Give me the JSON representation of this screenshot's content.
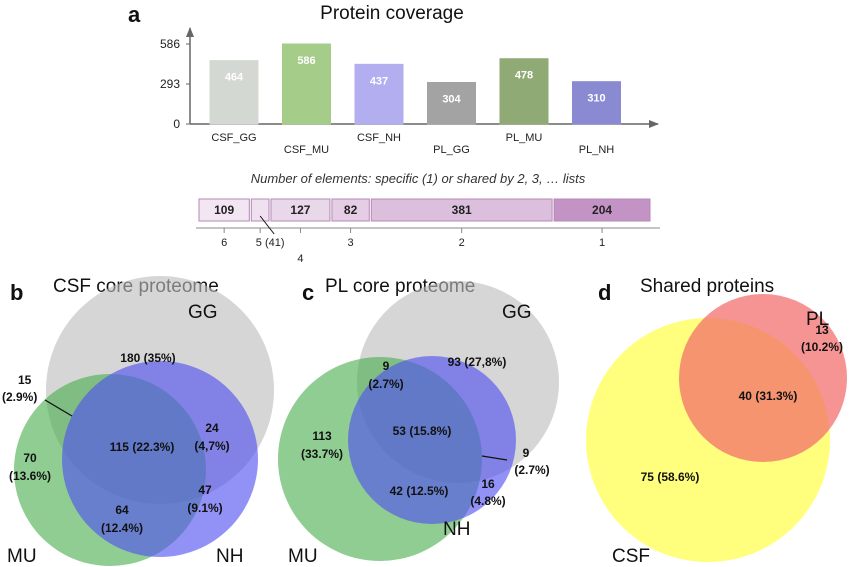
{
  "chart_data": [
    {
      "type": "bar",
      "panel": "a",
      "title": "Protein coverage",
      "categories": [
        "CSF_GG",
        "CSF_MU",
        "CSF_NH",
        "PL_GG",
        "PL_MU",
        "PL_NH"
      ],
      "values": [
        464,
        586,
        437,
        304,
        478,
        310
      ],
      "colors": [
        "#d4d8d2",
        "#a6cc8a",
        "#b3aef0",
        "#a3a3a3",
        "#8faa74",
        "#8a8ad2"
      ],
      "yticks": [
        0,
        293,
        586
      ],
      "ylim": [
        0,
        586
      ]
    },
    {
      "type": "bar",
      "subtype": "stacked-horizontal",
      "title": "Number of elements: specific (1) or shared by 2, 3, … lists",
      "segments": [
        {
          "count": 109,
          "label": "109",
          "tick": "6",
          "color": "#f2e6f2"
        },
        {
          "count": 41,
          "label": "",
          "tick": "5 (41)",
          "color": "#efe1ef"
        },
        {
          "count": 127,
          "label": "127",
          "tick": "4",
          "color": "#e9d7ea"
        },
        {
          "count": 82,
          "label": "82",
          "tick": "3",
          "color": "#e4cde5"
        },
        {
          "count": 381,
          "label": "381",
          "tick": "2",
          "color": "#dbbfdc"
        },
        {
          "count": 204,
          "label": "204",
          "tick": "1",
          "color": "#c493c6"
        }
      ]
    },
    {
      "type": "venn",
      "panel": "b",
      "title": "CSF core proteome",
      "sets": [
        {
          "name": "GG",
          "color": "#bdbdbd"
        },
        {
          "name": "MU",
          "color": "#4caf50"
        },
        {
          "name": "NH",
          "color": "#4f4ff0"
        }
      ],
      "regions": [
        {
          "count": "180",
          "pct": "(35%)"
        },
        {
          "count": "15",
          "pct": "(2.9%)"
        },
        {
          "count": "24",
          "pct": "(4,7%)"
        },
        {
          "count": "115",
          "pct": "(22.3%)"
        },
        {
          "count": "70",
          "pct": "(13.6%)"
        },
        {
          "count": "64",
          "pct": "(12.4%)"
        },
        {
          "count": "47",
          "pct": "(9.1%)"
        }
      ]
    },
    {
      "type": "venn",
      "panel": "c",
      "title": "PL core proteome",
      "sets": [
        {
          "name": "GG",
          "color": "#bdbdbd"
        },
        {
          "name": "MU",
          "color": "#4caf50"
        },
        {
          "name": "NH",
          "color": "#4f4ff0"
        }
      ],
      "regions": [
        {
          "count": "9",
          "pct": "(2.7%)"
        },
        {
          "count": "93",
          "pct": "(27,8%)"
        },
        {
          "count": "113",
          "pct": "(33.7%)"
        },
        {
          "count": "53",
          "pct": "(15.8%)"
        },
        {
          "count": "9",
          "pct": "(2.7%)"
        },
        {
          "count": "42",
          "pct": "(12.5%)"
        },
        {
          "count": "16",
          "pct": "(4.8%)"
        }
      ]
    },
    {
      "type": "venn",
      "panel": "d",
      "title": "Shared proteins",
      "sets": [
        {
          "name": "PL",
          "color": "#f26b6b"
        },
        {
          "name": "CSF",
          "color": "#ffff66"
        }
      ],
      "regions": [
        {
          "count": "13",
          "pct": "(10.2%)"
        },
        {
          "count": "40",
          "pct": "(31.3%)"
        },
        {
          "count": "75",
          "pct": "(58.6%)"
        }
      ]
    }
  ]
}
